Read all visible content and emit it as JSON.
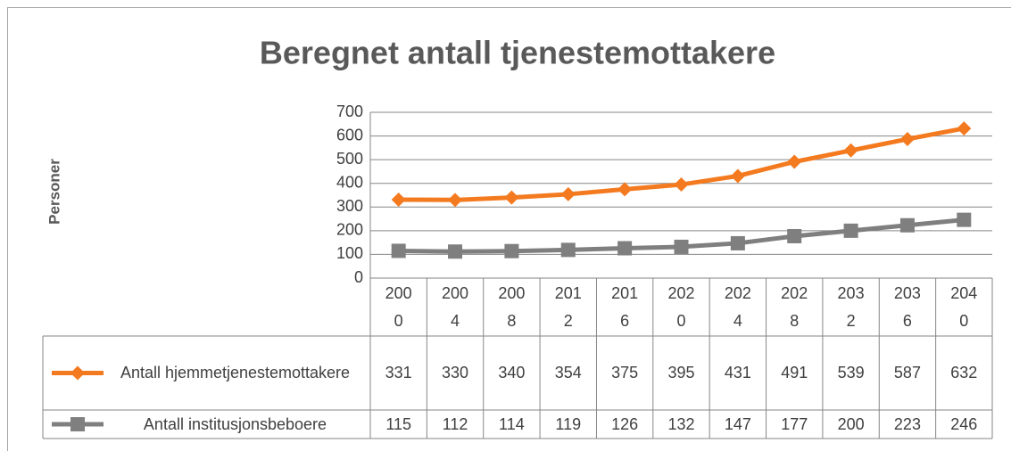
{
  "chart_data": {
    "type": "line",
    "title": "Beregnet antall tjenestemottakere",
    "y_label": "Personer",
    "categories": [
      "2000",
      "2004",
      "2008",
      "2012",
      "2016",
      "2020",
      "2024",
      "2028",
      "2032",
      "2036",
      "2040"
    ],
    "series": [
      {
        "name": "Antall hjemmetjenestemottakere",
        "color": "#f47a1f",
        "marker": "diamond",
        "values": [
          331,
          330,
          340,
          354,
          375,
          395,
          431,
          491,
          539,
          587,
          632
        ]
      },
      {
        "name": "Antall institusjonsbeboere",
        "color": "#7f7f7f",
        "marker": "square",
        "values": [
          115,
          112,
          114,
          119,
          126,
          132,
          147,
          177,
          200,
          223,
          246
        ]
      }
    ],
    "ylim": [
      0,
      700
    ],
    "yticks": [
      0,
      100,
      200,
      300,
      400,
      500,
      600,
      700
    ],
    "grid": true,
    "data_table": true
  }
}
